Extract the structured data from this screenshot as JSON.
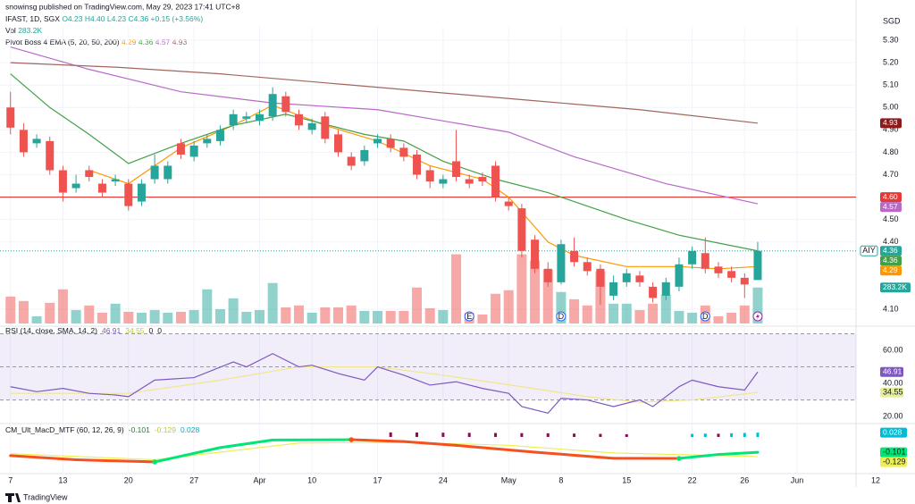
{
  "header": {
    "publisher": "snowinsg published on TradingView.com, May 29, 2023 17:41 UTC+8",
    "symbol": "IFAST, 1D, SGX",
    "ohlc_text": "O4.23 H4.40 L4.23 C4.36 +0.15 (+3.56%)",
    "volume_title": "Vol",
    "ema_title": "Pivot Boss 4 EMA (5, 20, 50, 200)",
    "symbol_tag": "AIY",
    "logo": "TradingView"
  },
  "chart_data": {
    "type": "candlestick",
    "currency": "SGD",
    "open": [
      5.0,
      4.9,
      4.84,
      4.85,
      4.72,
      4.64,
      4.72,
      4.66,
      4.67,
      4.66,
      4.58,
      4.68,
      4.68,
      4.84,
      4.78,
      4.84,
      4.85,
      4.92,
      4.95,
      4.94,
      4.96,
      5.05,
      4.97,
      4.9,
      4.96,
      4.88,
      4.78,
      4.76,
      4.84,
      4.86,
      4.82,
      4.79,
      4.72,
      4.66,
      4.76,
      4.68,
      4.69,
      4.74,
      4.58,
      4.55,
      4.41,
      4.28,
      4.22,
      4.36,
      4.31,
      4.28,
      4.16,
      4.22,
      4.25,
      4.2,
      4.16,
      4.2,
      4.3,
      4.35,
      4.29,
      4.27,
      4.24,
      4.23
    ],
    "high": [
      5.07,
      4.93,
      4.88,
      4.87,
      4.74,
      4.7,
      4.74,
      4.68,
      4.7,
      4.68,
      4.68,
      4.79,
      4.76,
      4.86,
      4.85,
      4.88,
      4.92,
      4.99,
      4.98,
      4.99,
      5.09,
      5.07,
      4.99,
      4.95,
      4.98,
      4.9,
      4.8,
      4.83,
      4.88,
      4.88,
      4.84,
      4.81,
      4.74,
      4.7,
      4.9,
      4.7,
      4.71,
      4.76,
      4.6,
      4.57,
      4.43,
      4.31,
      4.41,
      4.42,
      4.33,
      4.3,
      4.25,
      4.28,
      4.27,
      4.22,
      4.24,
      4.33,
      4.38,
      4.42,
      4.31,
      4.29,
      4.26,
      4.4
    ],
    "low": [
      4.88,
      4.78,
      4.82,
      4.7,
      4.58,
      4.62,
      4.67,
      4.6,
      4.65,
      4.54,
      4.56,
      4.66,
      4.66,
      4.77,
      4.76,
      4.82,
      4.83,
      4.9,
      4.93,
      4.92,
      4.94,
      4.96,
      4.9,
      4.88,
      4.84,
      4.78,
      4.72,
      4.74,
      4.82,
      4.8,
      4.76,
      4.68,
      4.64,
      4.64,
      4.67,
      4.64,
      4.65,
      4.58,
      4.54,
      4.33,
      4.26,
      4.2,
      4.21,
      4.29,
      4.25,
      4.12,
      4.14,
      4.2,
      4.2,
      4.13,
      4.14,
      4.18,
      4.28,
      4.26,
      4.24,
      4.22,
      4.15,
      4.23
    ],
    "close": [
      4.91,
      4.8,
      4.86,
      4.72,
      4.62,
      4.66,
      4.69,
      4.62,
      4.68,
      4.56,
      4.66,
      4.74,
      4.74,
      4.79,
      4.83,
      4.86,
      4.9,
      4.97,
      4.96,
      4.97,
      5.06,
      4.98,
      4.92,
      4.93,
      4.86,
      4.8,
      4.74,
      4.81,
      4.86,
      4.82,
      4.78,
      4.7,
      4.67,
      4.68,
      4.69,
      4.66,
      4.67,
      4.6,
      4.56,
      4.36,
      4.28,
      4.22,
      4.39,
      4.31,
      4.27,
      4.2,
      4.22,
      4.26,
      4.22,
      4.15,
      4.22,
      4.3,
      4.36,
      4.28,
      4.26,
      4.24,
      4.21,
      4.36
    ],
    "up_color": "#26a69a",
    "down_color": "#ef5350",
    "xlim": [
      -0.8,
      64.5
    ],
    "xticks": [
      {
        "value": 0,
        "label": "7"
      },
      {
        "value": 4,
        "label": "13"
      },
      {
        "value": 9,
        "label": "20"
      },
      {
        "value": 14,
        "label": "27"
      },
      {
        "value": 19,
        "label": "Apr"
      },
      {
        "value": 23,
        "label": "10"
      },
      {
        "value": 28,
        "label": "17"
      },
      {
        "value": 33,
        "label": "24"
      },
      {
        "value": 38,
        "label": "May"
      },
      {
        "value": 42,
        "label": "8"
      },
      {
        "value": 47,
        "label": "15"
      },
      {
        "value": 52,
        "label": "22"
      },
      {
        "value": 56,
        "label": "26"
      },
      {
        "value": 60,
        "label": "Jun"
      },
      {
        "value": 66,
        "label": "12"
      }
    ],
    "ylim": [
      4.036,
      5.36
    ],
    "yticks": [
      {
        "value": 5.3,
        "label": "5.30"
      },
      {
        "value": 5.2,
        "label": "5.20"
      },
      {
        "value": 5.1,
        "label": "5.10"
      },
      {
        "value": 5.0,
        "label": "5.00"
      },
      {
        "value": 4.9,
        "label": "4.90"
      },
      {
        "value": 4.8,
        "label": "4.80"
      },
      {
        "value": 4.7,
        "label": "4.70"
      },
      {
        "value": 4.5,
        "label": "4.50"
      },
      {
        "value": 4.4,
        "label": "4.40"
      },
      {
        "value": 4.1,
        "label": "4.10"
      }
    ],
    "grid": true,
    "hline": {
      "value": 4.6,
      "label": "4.60",
      "color": "#e53935"
    },
    "ema": [
      {
        "color": "#ff9800",
        "x": [
          6,
          9,
          13,
          17,
          20,
          24,
          28,
          32,
          36,
          38,
          41,
          43,
          47,
          51,
          54,
          57
        ],
        "values": [
          4.72,
          4.66,
          4.82,
          4.92,
          5.01,
          4.92,
          4.85,
          4.74,
          4.68,
          4.6,
          4.4,
          4.34,
          4.29,
          4.29,
          4.28,
          4.29
        ]
      },
      {
        "color": "#43a047",
        "x": [
          0,
          3,
          6,
          9,
          13,
          17,
          21,
          27,
          30,
          33,
          37,
          41,
          47,
          51,
          57
        ],
        "values": [
          5.15,
          5.0,
          4.88,
          4.75,
          4.84,
          4.92,
          4.97,
          4.88,
          4.85,
          4.76,
          4.68,
          4.62,
          4.5,
          4.43,
          4.36
        ]
      },
      {
        "color": "#ba68c8",
        "x": [
          0,
          6,
          13,
          20,
          28,
          33,
          38,
          43,
          50,
          57
        ],
        "values": [
          5.27,
          5.17,
          5.07,
          5.02,
          4.99,
          4.94,
          4.89,
          4.78,
          4.66,
          4.57
        ]
      },
      {
        "color": "#a1665e",
        "tag_color": "#8b1a1a",
        "x": [
          0,
          8,
          16,
          24,
          32,
          40,
          48,
          57
        ],
        "values": [
          5.2,
          5.18,
          5.15,
          5.11,
          5.07,
          5.03,
          4.99,
          4.93
        ]
      }
    ],
    "volume": {
      "values": [
        212,
        177,
        57,
        163,
        269,
        106,
        142,
        85,
        156,
        92,
        85,
        106,
        85,
        92,
        106,
        269,
        113,
        198,
        92,
        106,
        319,
        127,
        142,
        85,
        127,
        127,
        142,
        99,
        99,
        99,
        99,
        283,
        120,
        106,
        545,
        85,
        71,
        234,
        262,
        545,
        496,
        425,
        248,
        191,
        142,
        411,
        156,
        156,
        106,
        156,
        227,
        99,
        85,
        142,
        57,
        85,
        142,
        283.2
      ],
      "last_label": "283.2K",
      "ylim": [
        0,
        2336
      ]
    },
    "events": [
      {
        "index": 35,
        "label": "E"
      },
      {
        "index": 42,
        "label": "D"
      },
      {
        "index": 53,
        "label": "D"
      }
    ],
    "rsi": {
      "title": "RSI (14, close, SMA, 14, 2)",
      "extra": [
        "0",
        "0"
      ],
      "ylim": [
        16.8,
        73.0
      ],
      "yticks": [
        {
          "value": 60,
          "label": "60.00"
        },
        {
          "value": 40,
          "label": "40.00"
        },
        {
          "value": 20,
          "label": "20.00"
        }
      ],
      "bands": [
        70,
        50,
        30
      ],
      "band_color": "#7e57c2",
      "line": {
        "color": "#7e57c2",
        "x": [
          0,
          2,
          4,
          6,
          8,
          9,
          11,
          14,
          17,
          18,
          20,
          22,
          23,
          25,
          27,
          28,
          30,
          32,
          34,
          36,
          38,
          39,
          41,
          42,
          44,
          46,
          48,
          49,
          51,
          52,
          54,
          56,
          57
        ],
        "values": [
          38,
          35,
          37,
          34,
          33,
          32,
          42,
          43.5,
          53,
          50,
          58,
          50,
          51,
          46,
          42,
          50,
          45,
          39,
          41,
          37,
          34,
          26,
          22,
          31,
          30,
          26,
          30,
          26,
          38,
          42,
          38,
          36,
          46.91
        ]
      },
      "sma": {
        "color": "#f0e68c",
        "x": [
          0,
          9,
          16,
          22,
          28,
          33,
          39,
          44,
          48,
          52,
          57
        ],
        "values": [
          34,
          34,
          42,
          50,
          50,
          45,
          38,
          32,
          28.6,
          30,
          34.55
        ]
      }
    },
    "macd": {
      "title": "CM_Ult_MacD_MTF (60, 12, 26, 9)",
      "ylim": [
        -0.229,
        0.076
      ],
      "line": {
        "rising_color": "#00e676",
        "falling_color": "#f4511e",
        "x": [
          0,
          5,
          11,
          16,
          20,
          26,
          30,
          34,
          40,
          46,
          51,
          54,
          57
        ],
        "values": [
          -0.123,
          -0.15,
          -0.164,
          -0.07,
          -0.02,
          -0.018,
          -0.03,
          -0.055,
          -0.1,
          -0.14,
          -0.141,
          -0.115,
          -0.101
        ]
      },
      "signal": {
        "color": "#eeee55",
        "x": [
          0,
          11,
          22,
          30,
          38,
          46,
          57
        ],
        "values": [
          -0.11,
          -0.15,
          -0.04,
          -0.035,
          -0.055,
          -0.105,
          -0.129
        ]
      },
      "histogram": {
        "rising_color": "#00bcd4",
        "falling_color": "#880e4f",
        "x": [
          29,
          31,
          33,
          35,
          37,
          39,
          41,
          43,
          45,
          47,
          52,
          53,
          54,
          55,
          56,
          57
        ],
        "values": [
          0.03,
          0.029,
          0.028,
          0.027,
          0.026,
          0.025,
          0.024,
          0.022,
          0.02,
          0.018,
          0.02,
          0.022,
          0.021,
          0.024,
          0.026,
          0.028
        ]
      },
      "crosses": {
        "x": [
          11,
          26,
          51
        ],
        "colors": [
          "#00e676",
          "#f4511e",
          "#00e676"
        ]
      }
    }
  }
}
